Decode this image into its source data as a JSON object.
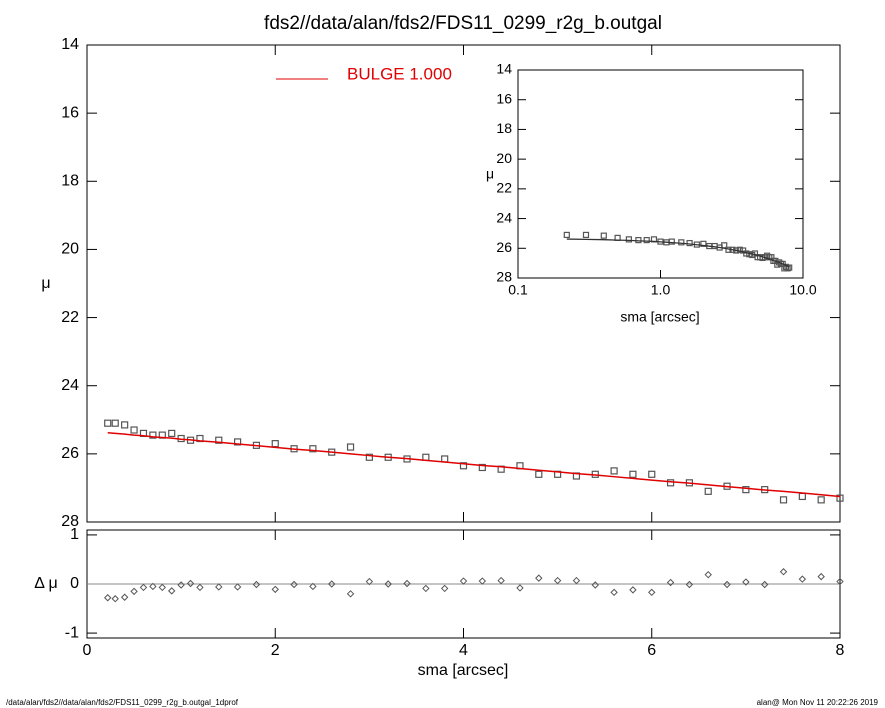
{
  "chart_data": [
    {
      "type": "scatter",
      "title": "fds2//data/alan/fds2/FDS11_0299_r2g_b.outgal",
      "ylabel": "μ",
      "x": [
        0.22,
        0.3,
        0.4,
        0.5,
        0.6,
        0.7,
        0.8,
        0.9,
        1.0,
        1.1,
        1.2,
        1.4,
        1.6,
        1.8,
        2.0,
        2.2,
        2.4,
        2.6,
        2.8,
        3.0,
        3.2,
        3.4,
        3.6,
        3.8,
        4.0,
        4.2,
        4.4,
        4.6,
        4.8,
        5.0,
        5.2,
        5.4,
        5.6,
        5.8,
        6.0,
        6.2,
        6.4,
        6.6,
        6.8,
        7.0,
        7.2,
        7.4,
        7.6,
        7.8,
        8.0
      ],
      "series": [
        {
          "color": "#555555",
          "values": [
            25.1,
            25.1,
            25.15,
            25.3,
            25.4,
            25.45,
            25.45,
            25.4,
            25.55,
            25.6,
            25.55,
            25.6,
            25.65,
            25.75,
            25.7,
            25.85,
            25.85,
            25.95,
            25.8,
            26.1,
            26.1,
            26.15,
            26.1,
            26.15,
            26.35,
            26.4,
            26.45,
            26.35,
            26.6,
            26.6,
            26.65,
            26.6,
            26.5,
            26.6,
            26.6,
            26.85,
            26.85,
            27.1,
            26.95,
            27.05,
            27.05,
            27.35,
            27.25,
            27.35,
            27.3
          ]
        },
        {
          "name": "BULGE  1.000",
          "color": "#e00000",
          "values": [
            25.38,
            25.4,
            25.42,
            25.45,
            25.47,
            25.5,
            25.52,
            25.54,
            25.57,
            25.59,
            25.62,
            25.66,
            25.71,
            25.76,
            25.81,
            25.86,
            25.9,
            25.95,
            26.0,
            26.05,
            26.1,
            26.14,
            26.19,
            26.24,
            26.29,
            26.34,
            26.38,
            26.43,
            26.48,
            26.53,
            26.58,
            26.62,
            26.67,
            26.72,
            26.77,
            26.82,
            26.86,
            26.91,
            26.96,
            27.01,
            27.06,
            27.1,
            27.15,
            27.2,
            27.25
          ]
        }
      ],
      "xlim": [
        0,
        8
      ],
      "xticks": [
        0,
        2,
        4,
        6,
        8
      ],
      "ylim": [
        28,
        14
      ],
      "yticks": [
        14,
        16,
        18,
        20,
        22,
        24,
        26,
        28
      ],
      "legend": "upper left"
    },
    {
      "type": "scatter",
      "ylabel": "Δ μ",
      "xlabel": "sma [arcsec]",
      "color": "#555555",
      "values": [
        -0.28,
        -0.3,
        -0.27,
        -0.15,
        -0.07,
        -0.05,
        -0.07,
        -0.14,
        -0.02,
        0.01,
        -0.07,
        -0.06,
        -0.06,
        -0.01,
        -0.11,
        -0.01,
        -0.05,
        0.0,
        -0.2,
        0.05,
        0.0,
        0.01,
        -0.09,
        -0.09,
        0.06,
        0.06,
        0.07,
        -0.08,
        0.12,
        0.07,
        0.07,
        -0.02,
        -0.17,
        -0.12,
        -0.17,
        0.03,
        -0.01,
        0.19,
        -0.01,
        0.04,
        -0.01,
        0.25,
        0.1,
        0.15,
        0.05
      ],
      "xlim": [
        0,
        8
      ],
      "xticks": [
        0,
        2,
        4,
        6,
        8
      ],
      "ylim": [
        -1.1,
        1.1
      ],
      "yticks": [
        1,
        0,
        -1
      ],
      "zero_line": true
    },
    {
      "type": "scatter",
      "ylabel": "μ",
      "xlabel": "sma [arcsec]",
      "xscale": "log",
      "model_color": "#333333",
      "xlim": [
        0.1,
        10
      ],
      "xticks": [
        0.1,
        {
          "value": 1,
          "label": "1.0"
        },
        {
          "value": 10,
          "label": "10.0"
        }
      ],
      "ylim": [
        28,
        14
      ],
      "yticks": [
        14,
        16,
        18,
        20,
        22,
        24,
        26,
        28
      ]
    }
  ],
  "footer": {
    "left": "/data/alan/fds2//data/alan/fds2/FDS11_0299_r2g_b.outgal_1dprof",
    "right": "alan@  Mon Nov 11 20:22:26 2019"
  }
}
